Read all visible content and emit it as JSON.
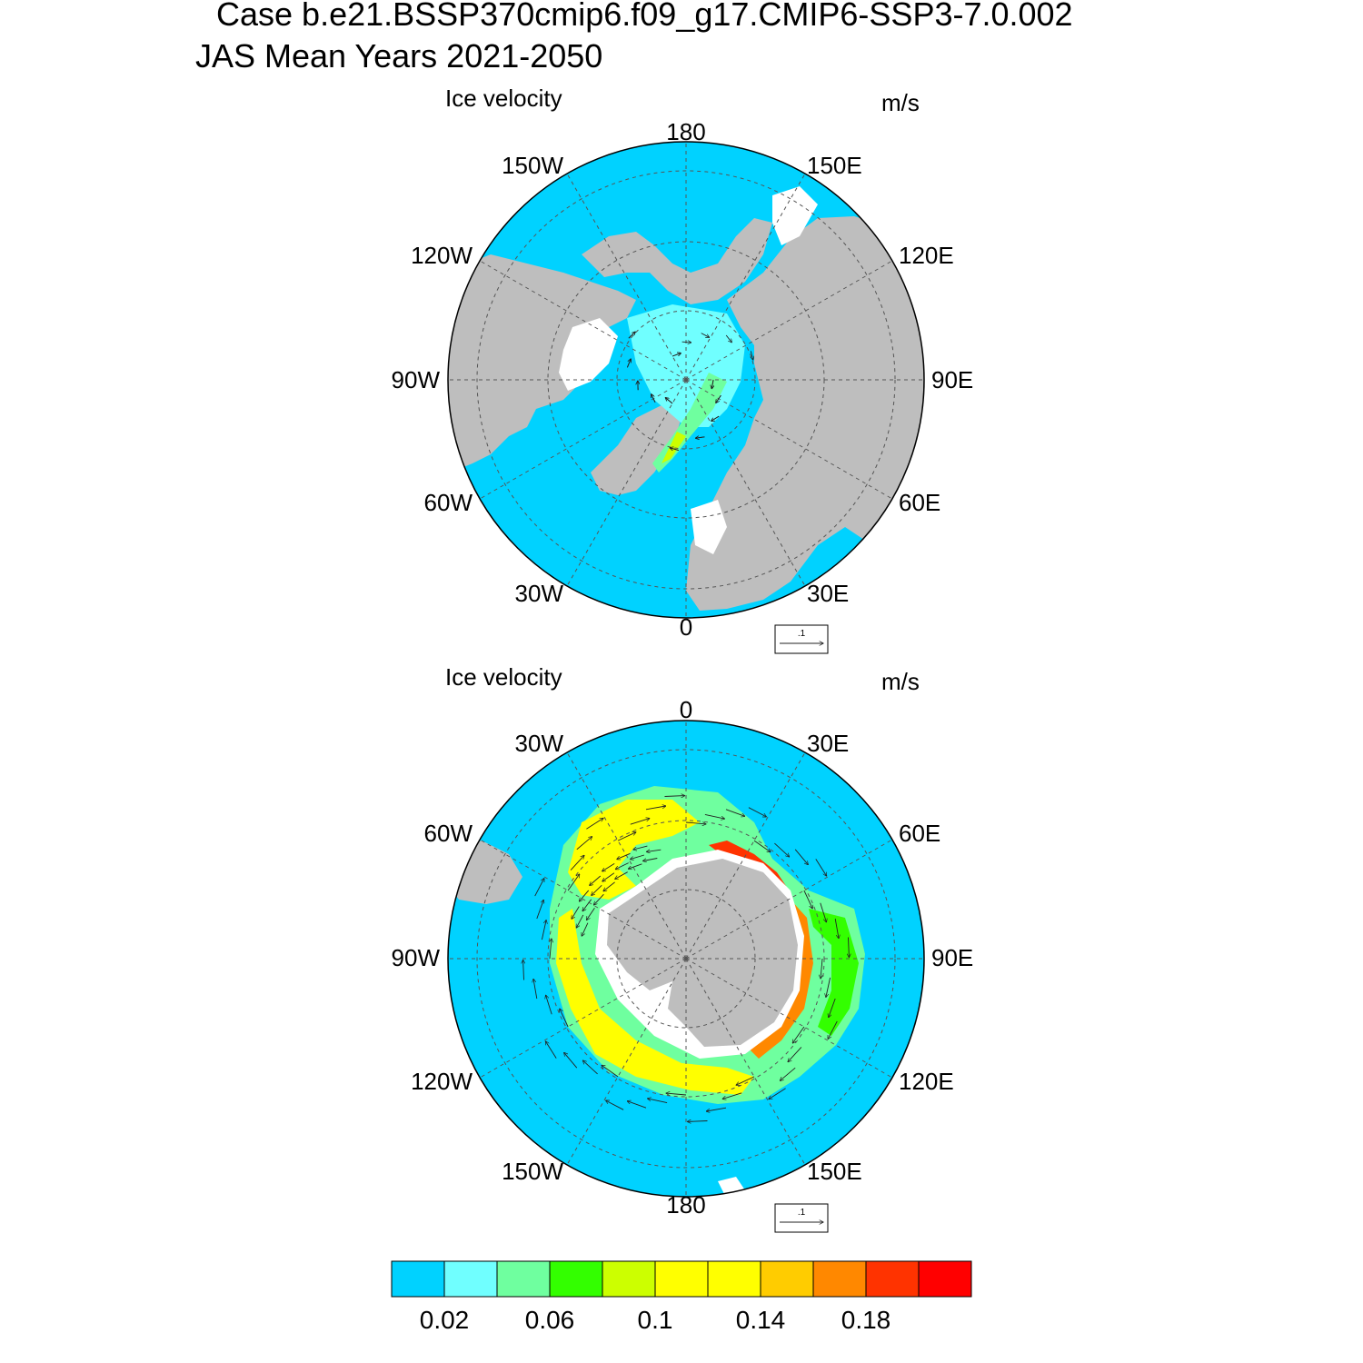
{
  "header": {
    "line1": "Case b.e21.BSSP370cmip6.f09_g17.CMIP6-SSP3-7.0.002",
    "line2": "JAS Mean   Years 2021-2050"
  },
  "colors": {
    "ocean": "#00D2FF",
    "land": "#BEBEBE",
    "nodata": "#FFFFFF",
    "grid": "#555555",
    "vector": "#222222"
  },
  "panels": [
    {
      "id": "north",
      "title": "Ice velocity",
      "units": "m/s",
      "labels": [
        "180",
        "150E",
        "120E",
        "90E",
        "60E",
        "30E",
        "0",
        "30W",
        "60W",
        "90W",
        "120W",
        "150W"
      ],
      "ref_vector": ".1"
    },
    {
      "id": "south",
      "title": "Ice velocity",
      "units": "m/s",
      "labels": [
        "0",
        "30E",
        "60E",
        "90E",
        "120E",
        "150E",
        "180",
        "150W",
        "120W",
        "90W",
        "60W",
        "30W"
      ],
      "ref_vector": ".1"
    }
  ],
  "colorbar": {
    "colors": [
      "#00D2FF",
      "#70FFFF",
      "#6FFF9F",
      "#33FF00",
      "#CCFF00",
      "#FFFF00",
      "#FFFF00",
      "#FFCC00",
      "#FF8800",
      "#FF3300",
      "#FF0000"
    ],
    "tick_labels": [
      "0.02",
      "0.06",
      "0.1",
      "0.14",
      "0.18"
    ]
  }
}
